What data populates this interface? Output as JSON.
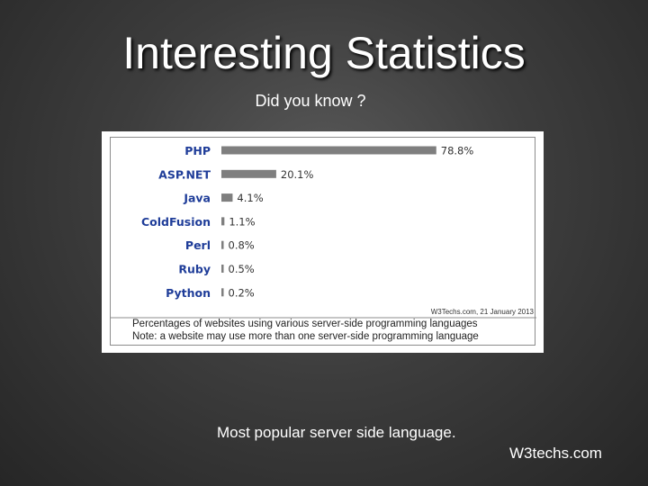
{
  "slide": {
    "title": "Interesting Statistics",
    "subtitle": "Did you know ?",
    "note": "Most popular server side language.",
    "source": "W3techs.com"
  },
  "chart_data": {
    "type": "bar",
    "orientation": "horizontal",
    "categories": [
      "PHP",
      "ASP.NET",
      "Java",
      "ColdFusion",
      "Perl",
      "Ruby",
      "Python"
    ],
    "values": [
      78.8,
      20.1,
      4.1,
      1.1,
      0.8,
      0.5,
      0.2
    ],
    "value_labels": [
      "78.8%",
      "20.1%",
      "4.1%",
      "1.1%",
      "0.8%",
      "0.5%",
      "0.2%"
    ],
    "xlim": [
      0,
      100
    ],
    "grid": false,
    "credit": "W3Techs.com, 21 January 2013",
    "caption_lines": [
      "Percentages of websites using various server-side programming languages",
      "Note: a website may use more than one server-side programming language"
    ],
    "colors": {
      "bar": "#7f7f7f",
      "label": "#1f3d99",
      "text": "#333333"
    }
  }
}
